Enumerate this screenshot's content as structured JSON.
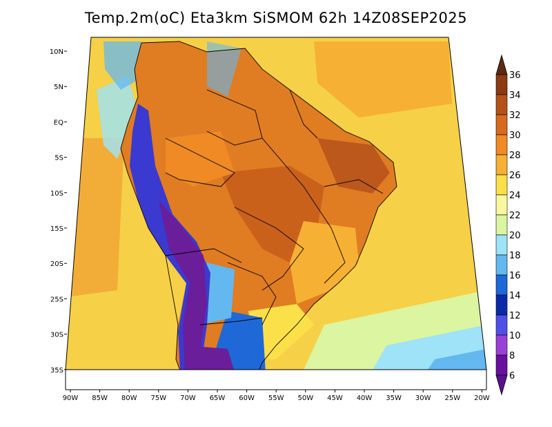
{
  "title": "Temp.2m(oC) Eta3km SiSMOM 62h 14Z08SEP2025",
  "lat_labels": [
    "10N",
    "5N",
    "EQ",
    "5S",
    "10S",
    "15S",
    "20S",
    "25S",
    "30S",
    "35S"
  ],
  "lon_labels": [
    "90W",
    "85W",
    "80W",
    "75W",
    "70W",
    "65W",
    "60W",
    "55W",
    "50W",
    "45W",
    "40W",
    "35W",
    "30W",
    "25W",
    "20W"
  ],
  "colorbar": {
    "labels": [
      "36",
      "34",
      "32",
      "30",
      "28",
      "26",
      "24",
      "22",
      "20",
      "18",
      "16",
      "14",
      "12",
      "10",
      "8",
      "6"
    ],
    "colors": [
      "#5a2a10",
      "#8b3a12",
      "#b5521a",
      "#d76a1c",
      "#ef8a24",
      "#f6b034",
      "#fce04a",
      "#f9f7a0",
      "#dcf5a0",
      "#9ee3f8",
      "#64b8f0",
      "#1f68d8",
      "#0a2aa8",
      "#5050e8",
      "#9a40d8",
      "#6a10a0"
    ],
    "top_color": "#5a2a10",
    "bottom_color": "#5a1090"
  },
  "colors": {
    "sea": "#f6d046",
    "land_hot": "#e07c22",
    "land_very_hot": "#c85e1a",
    "andes_cold": "#3a3ad0",
    "andes_coldest": "#6a1e9a"
  }
}
